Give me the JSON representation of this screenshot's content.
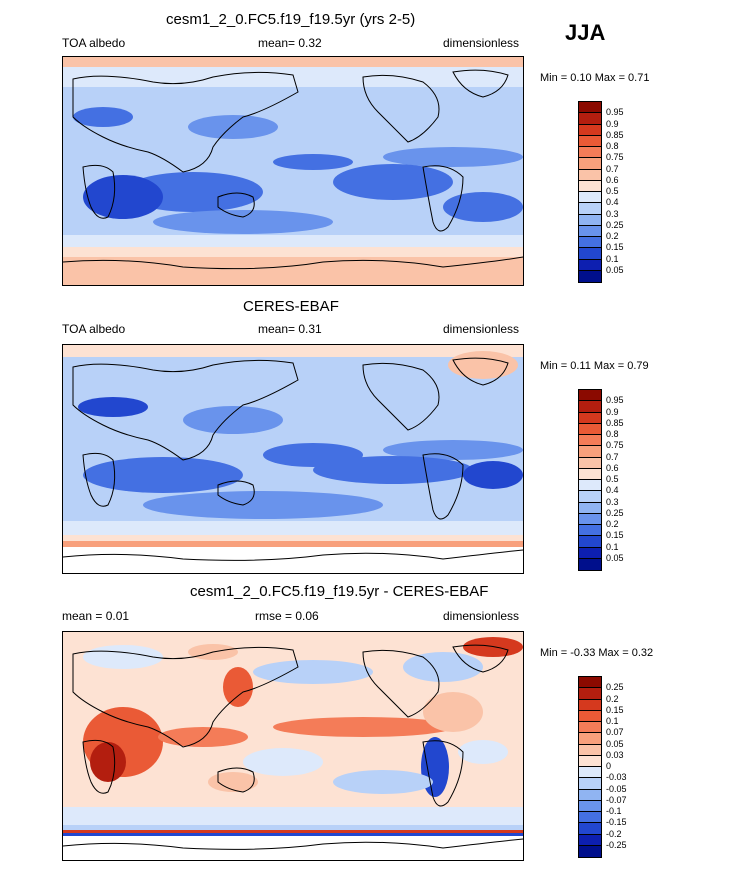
{
  "season": "JJA",
  "panels": [
    {
      "id": "model",
      "title": "cesm1_2_0.FC5.f19_f19.5yr (yrs 2-5)",
      "left_label": "TOA albedo",
      "center_label": "mean=  0.32",
      "right_label": "dimensionless",
      "minmax": "Min =  0.10 Max =  0.71"
    },
    {
      "id": "obs",
      "title": "CERES-EBAF",
      "left_label": "TOA albedo",
      "center_label": "mean=  0.31",
      "right_label": "dimensionless",
      "minmax": "Min =  0.11 Max =  0.79"
    },
    {
      "id": "diff",
      "title": "cesm1_2_0.FC5.f19_f19.5yr - CERES-EBAF",
      "left_label": "mean =  0.01",
      "center_label": "rmse =  0.06",
      "right_label": "dimensionless",
      "minmax": "Min =  -0.33 Max =  0.32"
    }
  ],
  "colorbars": {
    "absolute": {
      "labels": [
        "0.95",
        "0.9",
        "0.85",
        "0.8",
        "0.75",
        "0.7",
        "0.6",
        "0.5",
        "0.4",
        "0.3",
        "0.25",
        "0.2",
        "0.15",
        "0.1",
        "0.05"
      ],
      "colors": [
        "#8b0a00",
        "#b31e0f",
        "#d5391e",
        "#ea5a36",
        "#f47c58",
        "#f8a07c",
        "#fac3a8",
        "#fde2d3",
        "#dde9fb",
        "#b8d1f8",
        "#90b4f2",
        "#6993ec",
        "#4470e2",
        "#2247cf",
        "#0d1fb0",
        "#000f8c"
      ]
    },
    "difference": {
      "labels": [
        "0.25",
        "0.2",
        "0.15",
        "0.1",
        "0.07",
        "0.05",
        "0.03",
        "0",
        "-0.03",
        "-0.05",
        "-0.07",
        "-0.1",
        "-0.15",
        "-0.2",
        "-0.25"
      ],
      "colors": [
        "#8b0a00",
        "#b31e0f",
        "#d5391e",
        "#ea5a36",
        "#f47c58",
        "#f8a07c",
        "#fac3a8",
        "#fde2d3",
        "#dde9fb",
        "#b8d1f8",
        "#90b4f2",
        "#6993ec",
        "#4470e2",
        "#2247cf",
        "#0d1fb0",
        "#000f8c"
      ]
    }
  },
  "chart_data": [
    {
      "type": "heatmap",
      "title": "cesm1_2_0.FC5.f19_f19.5yr (yrs 2-5)",
      "variable": "TOA albedo",
      "units": "dimensionless",
      "mean": 0.32,
      "min": 0.1,
      "max": 0.71,
      "levels": [
        0.05,
        0.1,
        0.15,
        0.2,
        0.25,
        0.3,
        0.4,
        0.5,
        0.6,
        0.7,
        0.75,
        0.8,
        0.85,
        0.9,
        0.95
      ]
    },
    {
      "type": "heatmap",
      "title": "CERES-EBAF",
      "variable": "TOA albedo",
      "units": "dimensionless",
      "mean": 0.31,
      "min": 0.11,
      "max": 0.79,
      "levels": [
        0.05,
        0.1,
        0.15,
        0.2,
        0.25,
        0.3,
        0.4,
        0.5,
        0.6,
        0.7,
        0.75,
        0.8,
        0.85,
        0.9,
        0.95
      ]
    },
    {
      "type": "heatmap",
      "title": "cesm1_2_0.FC5.f19_f19.5yr - CERES-EBAF",
      "units": "dimensionless",
      "mean": 0.01,
      "rmse": 0.06,
      "min": -0.33,
      "max": 0.32,
      "levels": [
        -0.25,
        -0.2,
        -0.15,
        -0.1,
        -0.07,
        -0.05,
        -0.03,
        0,
        0.03,
        0.05,
        0.07,
        0.1,
        0.15,
        0.2,
        0.25
      ]
    }
  ]
}
